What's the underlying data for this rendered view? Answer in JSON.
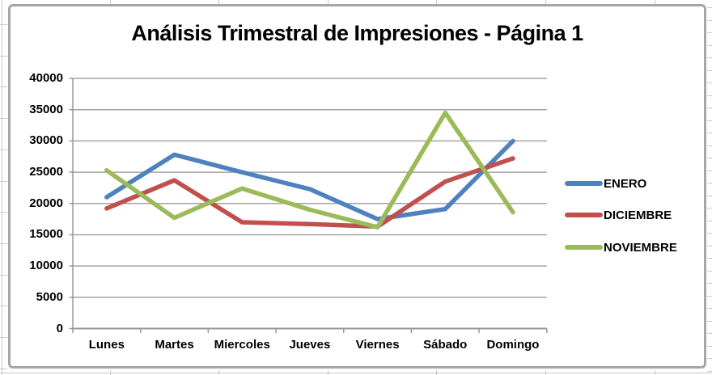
{
  "chart_data": {
    "type": "line",
    "title": "Análisis Trimestral de Impresiones - Página 1",
    "categories": [
      "Lunes",
      "Martes",
      "Miercoles",
      "Jueves",
      "Viernes",
      "Sábado",
      "Domingo"
    ],
    "series": [
      {
        "name": "ENERO",
        "color": "#4F81BD",
        "values": [
          21000,
          27800,
          25000,
          22300,
          17500,
          19100,
          30000
        ]
      },
      {
        "name": "DICIEMBRE",
        "color": "#C0504D",
        "values": [
          19200,
          23700,
          17000,
          16700,
          16300,
          23500,
          27200
        ]
      },
      {
        "name": "NOVIEMBRE",
        "color": "#9BBB59",
        "values": [
          25300,
          17700,
          22400,
          19000,
          16200,
          34500,
          18600
        ]
      }
    ],
    "ylim": [
      0,
      40000
    ],
    "ytick_step": 5000,
    "y_tick_labels": [
      "40000",
      "35000",
      "30000",
      "25000",
      "20000",
      "15000",
      "10000",
      "5000",
      "0"
    ],
    "xlabel": "",
    "ylabel": "",
    "grid": true,
    "legend_position": "right"
  },
  "colors": {
    "chart_border": "#a6a6a6",
    "gridline": "#a3a3a3",
    "axis": "#989898",
    "spreadsheet_grid": "#c9c9c9",
    "background": "#ffffff",
    "text": "#000000"
  }
}
